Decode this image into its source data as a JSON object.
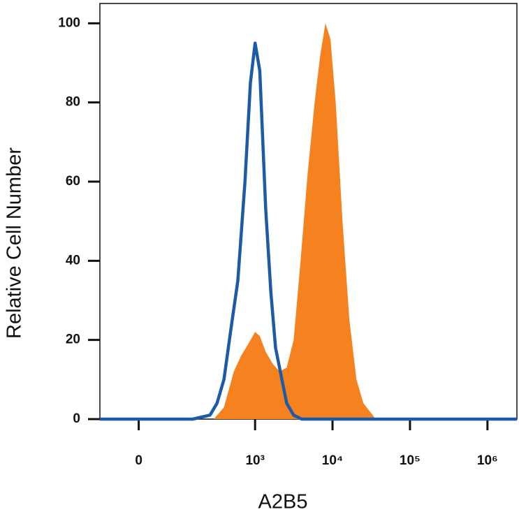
{
  "chart_data": {
    "type": "histogram-overlay",
    "x_label": "A2B5",
    "y_label": "Relative Cell Number",
    "xscale": "biexponential",
    "xlim": [
      -90,
      2400000
    ],
    "ylim": [
      0,
      105
    ],
    "xticks": [
      0,
      {
        "value": 1000,
        "label": "10³"
      },
      {
        "value": 10000,
        "label": "10⁴"
      },
      {
        "value": 100000,
        "label": "10⁵"
      },
      {
        "value": 1000000,
        "label": "10⁶"
      }
    ],
    "yticks": [
      0,
      20,
      40,
      60,
      80,
      100
    ],
    "series": [
      {
        "color": "#f5821f",
        "fill": true,
        "x": [
          290,
          394,
          530,
          660,
          817,
          1000,
          1150,
          1373,
          1690,
          2080,
          2560,
          3150,
          3870,
          4770,
          5870,
          6950,
          8100,
          9400,
          11000,
          13450,
          16500,
          20350,
          25000,
          33000,
          36000
        ],
        "values": [
          0,
          3,
          12,
          16,
          19,
          22,
          21,
          17,
          14,
          12,
          13,
          20,
          40,
          62,
          80,
          92,
          100,
          96,
          80,
          50,
          25,
          10,
          4,
          1,
          0
        ]
      },
      {
        "color": "#1f5aa6",
        "fill": false,
        "x": [
          -90,
          150,
          258,
          320,
          394,
          480,
          598,
          740,
          870,
          1000,
          1150,
          1373,
          1600,
          1840,
          2560,
          3150,
          4000,
          2400000
        ],
        "values": [
          0,
          0,
          1,
          4,
          10,
          22,
          35,
          60,
          85,
          95,
          88,
          53,
          32,
          18,
          4,
          1,
          0,
          0
        ]
      }
    ]
  }
}
